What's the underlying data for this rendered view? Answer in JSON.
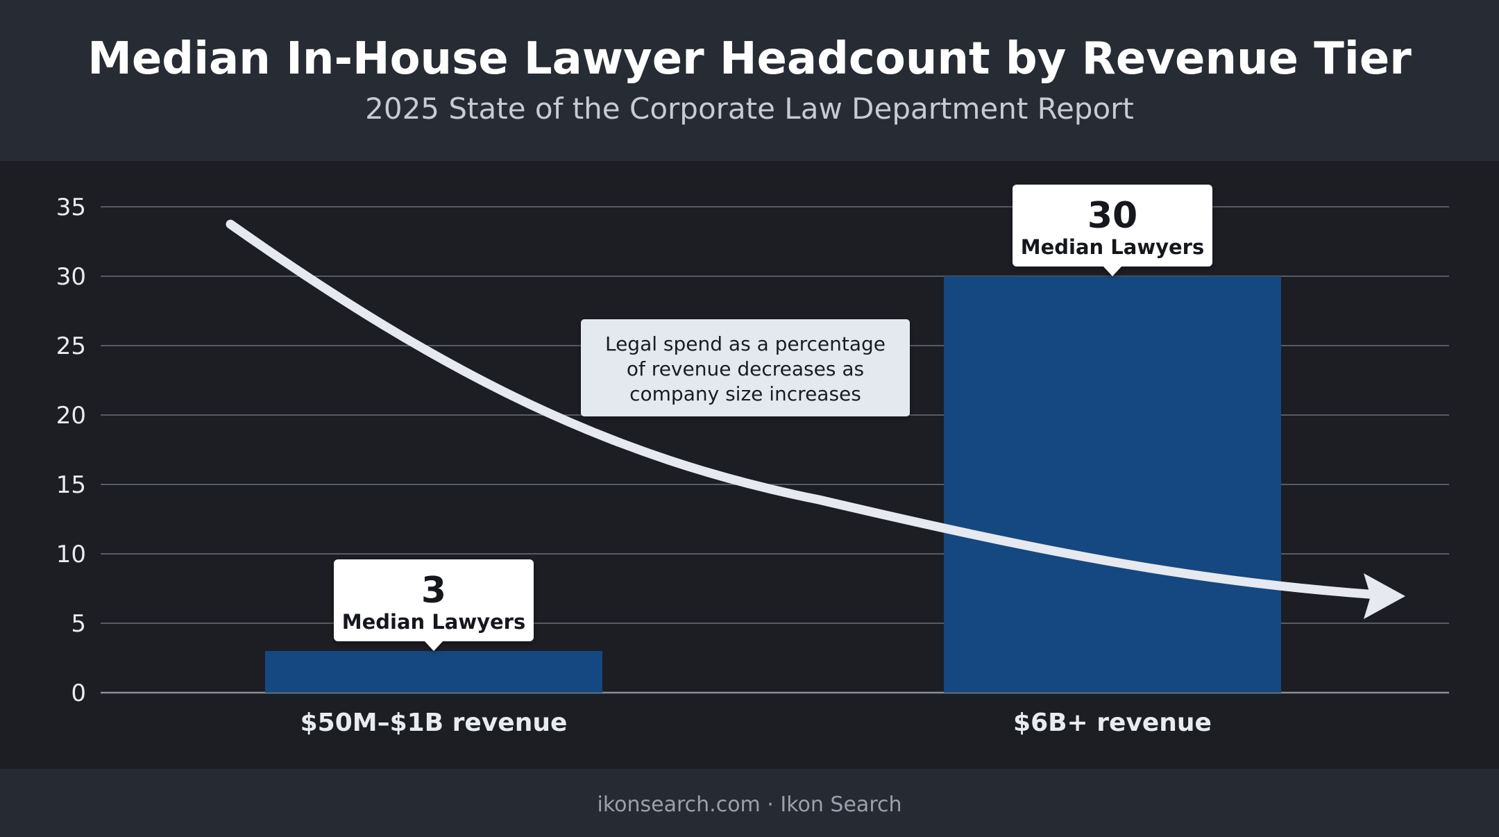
{
  "title": "Median In-House Lawyer Headcount by Revenue Tier",
  "subtitle": "2025 State of the Corporate Law Department Report",
  "footer": "ikonsearch.com · Ikon Search",
  "colors": {
    "background": "#1c1e24",
    "header": "#272b34",
    "bar": "#154880",
    "grid": "#6b7079",
    "arrow": "#e6e9ef",
    "callout": "#ffffff",
    "annotation_box": "#e4e9f0"
  },
  "chart_data": {
    "type": "bar",
    "title": "Median In-House Lawyer Headcount by Revenue Tier",
    "subtitle": "2025 State of the Corporate Law Department Report",
    "categories": [
      "$50M–$1B revenue",
      "$6B+ revenue"
    ],
    "values": [
      3,
      30
    ],
    "ylim": [
      0,
      35
    ],
    "yticks": [
      0,
      5,
      10,
      15,
      20,
      25,
      30,
      35
    ],
    "grid": true,
    "data_labels": [
      {
        "value": "3",
        "text": "Median Lawyers"
      },
      {
        "value": "30",
        "text": "Median Lawyers"
      }
    ],
    "annotation": {
      "lines": [
        "Legal spend as a percentage",
        "of revenue decreases as",
        "company size increases"
      ],
      "trend": "decreasing"
    }
  }
}
